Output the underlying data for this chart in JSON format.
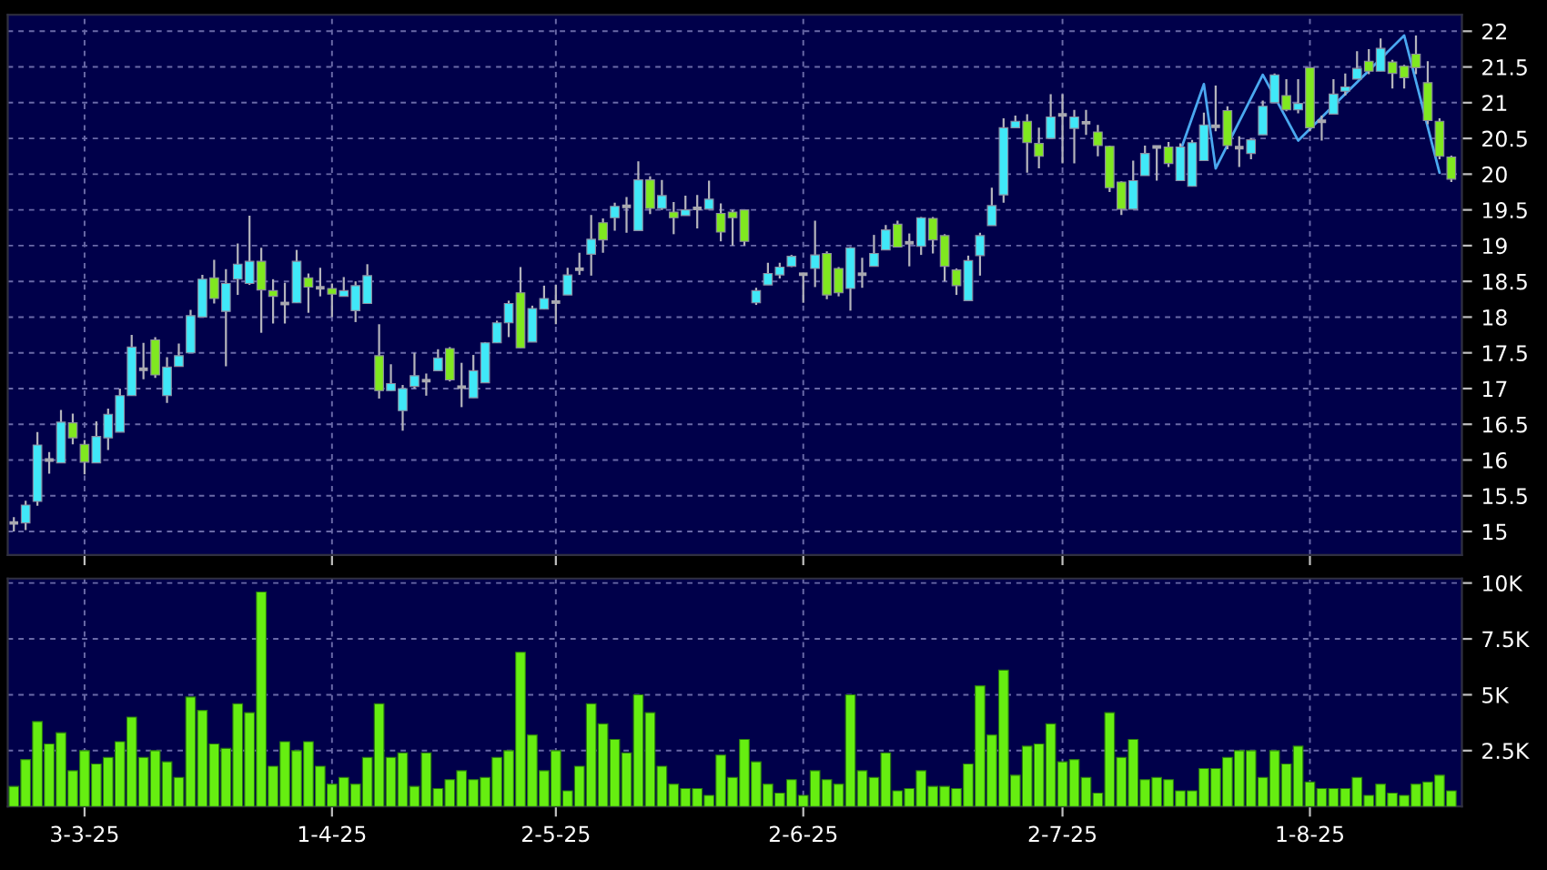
{
  "chart_data": [
    {
      "type": "candlestick",
      "tick_labels": "y",
      "grid": true,
      "categories": [
        null,
        null,
        null,
        null,
        null,
        null,
        null,
        null,
        null,
        null,
        null,
        null,
        null,
        null,
        null,
        null,
        null,
        null,
        null,
        null,
        null,
        null,
        null,
        null,
        null,
        null,
        null,
        null,
        null,
        null,
        null,
        null,
        null,
        null,
        null,
        null,
        null,
        null,
        null,
        null,
        null,
        null,
        null,
        null,
        null,
        null,
        null,
        null,
        null,
        null,
        null,
        null,
        null,
        null,
        null,
        null,
        null,
        null,
        null,
        null,
        null,
        null,
        null,
        null,
        null,
        null,
        null,
        null,
        null,
        null,
        null,
        null,
        null,
        null,
        null,
        null,
        null,
        null,
        null,
        null,
        null,
        null,
        null,
        null,
        null,
        null,
        null,
        null,
        null,
        null,
        null,
        null,
        null,
        null,
        null,
        null,
        null,
        null,
        null,
        null,
        null,
        null,
        null,
        null,
        null,
        null,
        null,
        null,
        null,
        null,
        null,
        null,
        null,
        null,
        null,
        null,
        null,
        null,
        null,
        null,
        null,
        null,
        null
      ],
      "ylim": [
        14.67,
        22.23
      ],
      "yticks": [
        15,
        15.5,
        16,
        16.5,
        17,
        17.5,
        18,
        18.5,
        19,
        19.5,
        20,
        20.5,
        21,
        21.5,
        22
      ],
      "ohlc": [
        [
          15.12,
          15.2,
          15.0,
          15.12
        ],
        [
          15.12,
          15.43,
          15.02,
          15.37
        ],
        [
          15.42,
          16.39,
          15.36,
          16.21
        ],
        [
          16.0,
          16.11,
          15.81,
          16.0
        ],
        [
          15.96,
          16.7,
          15.96,
          16.53
        ],
        [
          16.52,
          16.65,
          16.22,
          16.31
        ],
        [
          16.22,
          16.28,
          15.8,
          15.97
        ],
        [
          15.96,
          16.54,
          15.96,
          16.33
        ],
        [
          16.31,
          16.72,
          16.14,
          16.64
        ],
        [
          16.39,
          17.0,
          16.39,
          16.9
        ],
        [
          16.9,
          17.75,
          16.9,
          17.58
        ],
        [
          17.27,
          17.64,
          17.13,
          17.27
        ],
        [
          17.68,
          17.72,
          17.15,
          17.19
        ],
        [
          16.9,
          17.44,
          16.8,
          17.3
        ],
        [
          17.31,
          17.63,
          17.31,
          17.46
        ],
        [
          17.5,
          18.1,
          17.5,
          18.02
        ],
        [
          18.0,
          18.59,
          18.0,
          18.53
        ],
        [
          18.55,
          18.8,
          18.19,
          18.26
        ],
        [
          18.08,
          18.67,
          17.31,
          18.47
        ],
        [
          18.53,
          19.03,
          18.31,
          18.74
        ],
        [
          18.47,
          19.42,
          18.45,
          18.78
        ],
        [
          18.78,
          18.97,
          17.78,
          18.38
        ],
        [
          18.37,
          18.53,
          17.91,
          18.29
        ],
        [
          18.19,
          18.48,
          17.91,
          18.19
        ],
        [
          18.2,
          18.94,
          18.2,
          18.78
        ],
        [
          18.55,
          18.61,
          18.06,
          18.42
        ],
        [
          18.41,
          18.69,
          18.29,
          18.41
        ],
        [
          18.4,
          18.47,
          18.0,
          18.32
        ],
        [
          18.29,
          18.56,
          18.29,
          18.37
        ],
        [
          18.09,
          18.5,
          17.93,
          18.44
        ],
        [
          18.19,
          18.74,
          18.19,
          18.58
        ],
        [
          17.46,
          17.9,
          16.86,
          16.97
        ],
        [
          16.97,
          17.34,
          16.97,
          17.07
        ],
        [
          16.69,
          17.05,
          16.41,
          17.0
        ],
        [
          17.03,
          17.5,
          17.0,
          17.18
        ],
        [
          17.11,
          17.21,
          16.9,
          17.11
        ],
        [
          17.25,
          17.55,
          17.25,
          17.43
        ],
        [
          17.56,
          17.58,
          17.1,
          17.12
        ],
        [
          17.02,
          17.36,
          16.74,
          17.02
        ],
        [
          16.87,
          17.47,
          16.87,
          17.25
        ],
        [
          17.08,
          17.65,
          17.08,
          17.64
        ],
        [
          17.64,
          17.95,
          17.64,
          17.92
        ],
        [
          17.92,
          18.23,
          17.72,
          18.19
        ],
        [
          18.34,
          18.7,
          17.57,
          17.57
        ],
        [
          17.65,
          18.16,
          17.65,
          18.12
        ],
        [
          18.11,
          18.44,
          18.11,
          18.26
        ],
        [
          18.21,
          18.45,
          17.9,
          18.21
        ],
        [
          18.31,
          18.69,
          18.31,
          18.59
        ],
        [
          18.67,
          18.9,
          18.59,
          18.67
        ],
        [
          18.88,
          19.43,
          18.58,
          19.09
        ],
        [
          19.32,
          19.38,
          18.9,
          19.08
        ],
        [
          19.39,
          19.6,
          19.21,
          19.55
        ],
        [
          19.55,
          19.68,
          19.18,
          19.55
        ],
        [
          19.21,
          20.18,
          19.21,
          19.92
        ],
        [
          19.92,
          19.97,
          19.44,
          19.52
        ],
        [
          19.52,
          19.92,
          19.5,
          19.7
        ],
        [
          19.47,
          19.61,
          19.16,
          19.39
        ],
        [
          19.42,
          19.7,
          19.42,
          19.5
        ],
        [
          19.52,
          19.71,
          19.24,
          19.52
        ],
        [
          19.51,
          19.91,
          19.51,
          19.65
        ],
        [
          19.45,
          19.59,
          19.06,
          19.19
        ],
        [
          19.47,
          19.5,
          19.0,
          19.39
        ],
        [
          19.5,
          19.5,
          19.0,
          19.06
        ],
        [
          18.2,
          18.41,
          18.17,
          18.37
        ],
        [
          18.45,
          18.76,
          18.45,
          18.61
        ],
        [
          18.59,
          18.76,
          18.54,
          18.7
        ],
        [
          18.71,
          18.87,
          18.7,
          18.85
        ],
        [
          18.6,
          18.62,
          18.2,
          18.6
        ],
        [
          18.68,
          19.35,
          18.42,
          18.87
        ],
        [
          18.89,
          18.92,
          18.25,
          18.31
        ],
        [
          18.68,
          18.7,
          18.29,
          18.34
        ],
        [
          18.4,
          18.98,
          18.09,
          18.97
        ],
        [
          18.6,
          18.83,
          18.41,
          18.6
        ],
        [
          18.71,
          19.15,
          18.71,
          18.89
        ],
        [
          18.94,
          19.29,
          18.94,
          19.22
        ],
        [
          19.3,
          19.35,
          18.98,
          18.98
        ],
        [
          19.04,
          19.17,
          18.71,
          19.04
        ],
        [
          18.99,
          19.4,
          18.87,
          19.39
        ],
        [
          19.38,
          19.4,
          18.89,
          19.08
        ],
        [
          19.14,
          19.16,
          18.5,
          18.71
        ],
        [
          18.66,
          18.68,
          18.31,
          18.44
        ],
        [
          18.23,
          18.86,
          18.23,
          18.79
        ],
        [
          18.86,
          19.18,
          18.58,
          19.14
        ],
        [
          19.28,
          19.81,
          19.28,
          19.56
        ],
        [
          19.71,
          20.78,
          19.6,
          20.65
        ],
        [
          20.65,
          20.82,
          20.65,
          20.74
        ],
        [
          20.74,
          20.84,
          20.02,
          20.44
        ],
        [
          20.43,
          20.65,
          20.08,
          20.25
        ],
        [
          20.5,
          21.12,
          20.5,
          20.8
        ],
        [
          20.83,
          21.12,
          20.15,
          20.83
        ],
        [
          20.64,
          20.9,
          20.15,
          20.8
        ],
        [
          20.72,
          20.9,
          20.55,
          20.72
        ],
        [
          20.59,
          20.69,
          20.25,
          20.4
        ],
        [
          20.39,
          20.4,
          19.75,
          19.81
        ],
        [
          19.89,
          19.9,
          19.43,
          19.51
        ],
        [
          19.51,
          20.19,
          19.51,
          19.91
        ],
        [
          19.98,
          20.4,
          19.98,
          20.29
        ],
        [
          20.38,
          20.4,
          19.91,
          20.38
        ],
        [
          20.38,
          20.45,
          20.1,
          20.15
        ],
        [
          19.91,
          20.43,
          19.91,
          20.38
        ],
        [
          19.83,
          20.48,
          19.83,
          20.44
        ],
        [
          20.19,
          20.86,
          20.19,
          20.69
        ],
        [
          20.67,
          21.24,
          20.6,
          20.67
        ],
        [
          20.89,
          20.95,
          20.35,
          20.4
        ],
        [
          20.37,
          20.53,
          20.1,
          20.37
        ],
        [
          20.29,
          20.5,
          20.21,
          20.48
        ],
        [
          20.55,
          21.03,
          20.55,
          20.95
        ],
        [
          21.0,
          21.41,
          21.0,
          21.39
        ],
        [
          21.1,
          21.33,
          20.88,
          20.9
        ],
        [
          20.9,
          21.33,
          20.85,
          20.99
        ],
        [
          21.49,
          21.5,
          20.6,
          20.65
        ],
        [
          20.74,
          20.82,
          20.47,
          20.74
        ],
        [
          20.84,
          21.33,
          20.84,
          21.12
        ],
        [
          21.16,
          21.41,
          21.1,
          21.22
        ],
        [
          21.33,
          21.72,
          21.33,
          21.48
        ],
        [
          21.58,
          21.75,
          21.4,
          21.44
        ],
        [
          21.44,
          21.9,
          21.44,
          21.76
        ],
        [
          21.57,
          21.6,
          21.2,
          21.41
        ],
        [
          21.51,
          21.53,
          21.2,
          21.35
        ],
        [
          21.68,
          21.94,
          21.4,
          21.49
        ],
        [
          21.28,
          21.58,
          20.7,
          20.75
        ],
        [
          20.74,
          20.78,
          20.21,
          20.25
        ],
        [
          20.24,
          20.26,
          19.89,
          19.93
        ]
      ],
      "colors": [
        "#a8a8b0",
        "#40e8f8",
        "#40e8f8",
        "#a8a8b0",
        "#40e8f8",
        "#80e820",
        "#80e820",
        "#40e8f8",
        "#40e8f8",
        "#40e8f8",
        "#40e8f8",
        "#a8a8b0",
        "#80e820",
        "#40e8f8",
        "#40e8f8",
        "#40e8f8",
        "#40e8f8",
        "#80e820",
        "#40e8f8",
        "#40e8f8",
        "#40e8f8",
        "#80e820",
        "#80e820",
        "#a8a8b0",
        "#40e8f8",
        "#80e820",
        "#a8a8b0",
        "#80e820",
        "#40e8f8",
        "#40e8f8",
        "#40e8f8",
        "#80e820",
        "#40e8f8",
        "#40e8f8",
        "#40e8f8",
        "#a8a8b0",
        "#40e8f8",
        "#80e820",
        "#a8a8b0",
        "#40e8f8",
        "#40e8f8",
        "#40e8f8",
        "#40e8f8",
        "#80e820",
        "#40e8f8",
        "#40e8f8",
        "#a8a8b0",
        "#40e8f8",
        "#a8a8b0",
        "#40e8f8",
        "#80e820",
        "#40e8f8",
        "#a8a8b0",
        "#40e8f8",
        "#80e820",
        "#40e8f8",
        "#80e820",
        "#40e8f8",
        "#a8a8b0",
        "#40e8f8",
        "#80e820",
        "#80e820",
        "#80e820",
        "#40e8f8",
        "#40e8f8",
        "#40e8f8",
        "#40e8f8",
        "#a8a8b0",
        "#40e8f8",
        "#80e820",
        "#80e820",
        "#40e8f8",
        "#a8a8b0",
        "#40e8f8",
        "#40e8f8",
        "#80e820",
        "#a8a8b0",
        "#40e8f8",
        "#80e820",
        "#80e820",
        "#80e820",
        "#40e8f8",
        "#40e8f8",
        "#40e8f8",
        "#40e8f8",
        "#40e8f8",
        "#80e820",
        "#80e820",
        "#40e8f8",
        "#a8a8b0",
        "#40e8f8",
        "#a8a8b0",
        "#80e820",
        "#80e820",
        "#80e820",
        "#40e8f8",
        "#40e8f8",
        "#a8a8b0",
        "#80e820",
        "#40e8f8",
        "#40e8f8",
        "#40e8f8",
        "#a8a8b0",
        "#80e820",
        "#a8a8b0",
        "#40e8f8",
        "#40e8f8",
        "#40e8f8",
        "#80e820",
        "#40e8f8",
        "#80e820",
        "#a8a8b0",
        "#40e8f8",
        "#40e8f8",
        "#40e8f8",
        "#80e820",
        "#40e8f8",
        "#80e820",
        "#80e820",
        "#80e820",
        "#80e820",
        "#80e820",
        "#80e820"
      ],
      "series": [
        {
          "type": "line",
          "color": "#4aa8f0",
          "values": [
            null,
            null,
            null,
            null,
            null,
            null,
            null,
            null,
            null,
            null,
            null,
            null,
            null,
            null,
            null,
            null,
            null,
            null,
            null,
            null,
            null,
            null,
            null,
            null,
            null,
            null,
            null,
            null,
            null,
            null,
            null,
            null,
            null,
            null,
            null,
            null,
            null,
            null,
            null,
            null,
            null,
            null,
            null,
            null,
            null,
            null,
            null,
            null,
            null,
            null,
            null,
            null,
            null,
            null,
            null,
            null,
            null,
            null,
            null,
            null,
            null,
            null,
            null,
            null,
            null,
            null,
            null,
            null,
            null,
            null,
            null,
            null,
            null,
            null,
            null,
            null,
            null,
            null,
            null,
            null,
            null,
            null,
            null,
            null,
            null,
            null,
            null,
            null,
            null,
            null,
            null,
            null,
            null,
            null,
            null,
            null,
            null,
            null,
            null,
            20.32,
            null,
            21.26,
            20.08,
            null,
            null,
            null,
            21.39,
            null,
            null,
            20.47,
            null,
            null,
            null,
            null,
            null,
            null,
            null,
            null,
            21.94,
            null,
            null,
            20.02,
            null
          ]
        }
      ]
    },
    {
      "type": "bar",
      "grid": true,
      "categories": [
        null,
        null,
        null,
        null,
        null,
        null,
        "3-3-25",
        null,
        null,
        null,
        null,
        null,
        null,
        null,
        null,
        null,
        null,
        null,
        null,
        null,
        null,
        null,
        null,
        null,
        null,
        null,
        null,
        "1-4-25",
        null,
        null,
        null,
        null,
        null,
        null,
        null,
        null,
        null,
        null,
        null,
        null,
        null,
        null,
        null,
        null,
        null,
        null,
        "2-5-25",
        null,
        null,
        null,
        null,
        null,
        null,
        null,
        null,
        null,
        null,
        null,
        null,
        null,
        null,
        null,
        null,
        null,
        null,
        null,
        null,
        "2-6-25",
        null,
        null,
        null,
        null,
        null,
        null,
        null,
        null,
        null,
        null,
        null,
        null,
        null,
        null,
        null,
        null,
        null,
        null,
        null,
        null,
        null,
        "2-7-25",
        null,
        null,
        null,
        null,
        null,
        null,
        null,
        null,
        null,
        null,
        null,
        null,
        null,
        null,
        null,
        null,
        null,
        null,
        null,
        null,
        "1-8-25",
        null,
        null,
        null,
        null,
        null,
        null,
        null,
        null,
        null,
        null,
        null,
        null
      ],
      "ylim": [
        0,
        10200
      ],
      "yticks": [
        {
          "value": 2500,
          "label": "2.5K"
        },
        {
          "value": 5000,
          "label": "5K"
        },
        {
          "value": 7500,
          "label": "7.5K"
        },
        {
          "value": 10000,
          "label": "10K"
        }
      ],
      "series": [
        {
          "color": "#66ee11",
          "values": [
            900,
            2100,
            3800,
            2800,
            3300,
            1600,
            2500,
            1900,
            2200,
            2900,
            4000,
            2200,
            2500,
            2000,
            1300,
            4900,
            4300,
            2800,
            2600,
            4600,
            4200,
            9600,
            1800,
            2900,
            2500,
            2900,
            1800,
            1000,
            1300,
            1000,
            2200,
            4600,
            2200,
            2400,
            900,
            2400,
            800,
            1200,
            1600,
            1200,
            1300,
            2200,
            2500,
            6900,
            3200,
            1600,
            2500,
            700,
            1800,
            4600,
            3700,
            3000,
            2400,
            5000,
            4200,
            1800,
            1000,
            800,
            800,
            500,
            2300,
            1300,
            3000,
            2000,
            1000,
            600,
            1200,
            500,
            1600,
            1200,
            1000,
            5000,
            1600,
            1300,
            2400,
            700,
            800,
            1600,
            900,
            900,
            800,
            1900,
            5400,
            3200,
            6100,
            1400,
            2700,
            2800,
            3700,
            2000,
            2100,
            1300,
            600,
            4200,
            2200,
            3000,
            1200,
            1300,
            1200,
            700,
            700,
            1700,
            1700,
            2200,
            2500,
            2500,
            1300,
            2500,
            1900,
            2700,
            1100,
            800,
            800,
            800,
            1300,
            500,
            1000,
            600,
            500,
            1000,
            1100,
            1400,
            700
          ]
        }
      ]
    }
  ]
}
